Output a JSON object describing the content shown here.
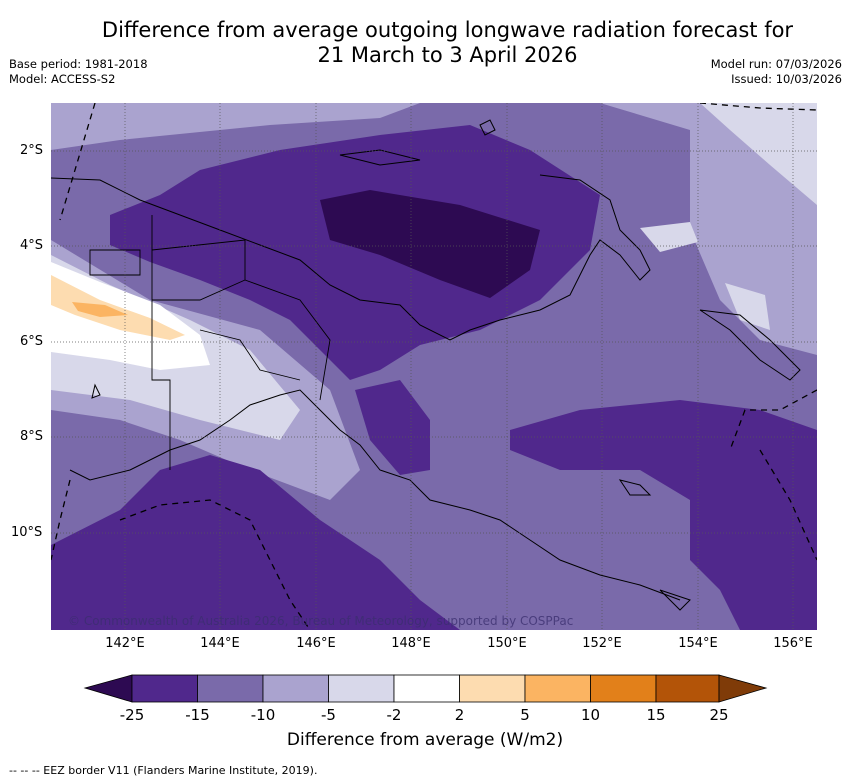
{
  "title_line1": "Difference from average outgoing longwave radiation forecast for",
  "title_line2": "21 March to 3 April 2026",
  "base_period": "Base period: 1981-2018",
  "model": "Model: ACCESS-S2",
  "model_run": "Model run: 07/03/2026",
  "issued": "Issued: 10/03/2026",
  "copyright": "© Commonwealth of Australia 2026, Bureau of Meteorology, supported by COSPPac",
  "lat_ticks": [
    "2°S",
    "4°S",
    "6°S",
    "8°S",
    "10°S"
  ],
  "lon_ticks": [
    "142°E",
    "144°E",
    "146°E",
    "148°E",
    "150°E",
    "152°E",
    "154°E",
    "156°E"
  ],
  "colorbar": {
    "title": "Difference from average (W/m2)",
    "labels": [
      "-25",
      "-15",
      "-10",
      "-5",
      "-2",
      "2",
      "5",
      "10",
      "15",
      "25"
    ],
    "colors": [
      "#2d0a52",
      "#50288c",
      "#7a6aaa",
      "#aaa3cf",
      "#d8d8ea",
      "#ffffff",
      "#fddcb0",
      "#fbb462",
      "#e2801a",
      "#b35408",
      "#7f3b08"
    ]
  },
  "eez_legend": "-- --  -- EEZ border V11 (Flanders Marine Institute, 2019)."
}
